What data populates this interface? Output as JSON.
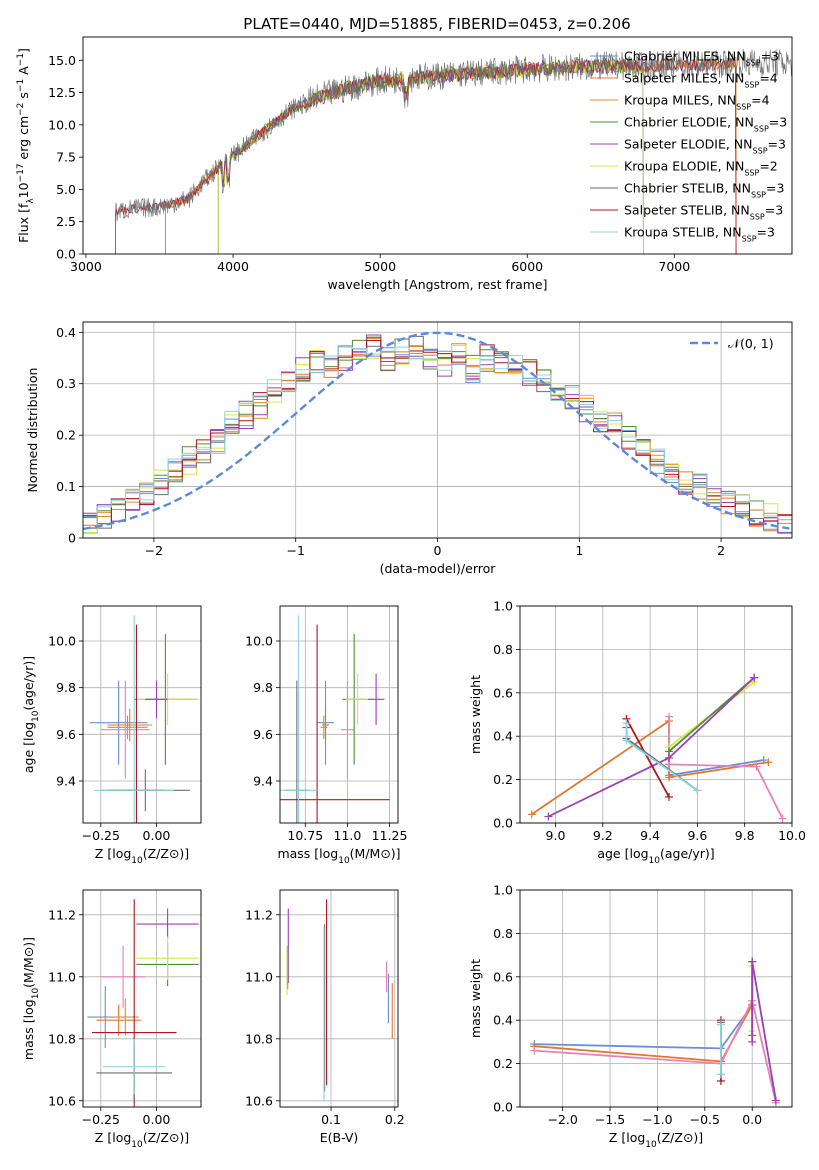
{
  "figure": {
    "title": "PLATE=0440, MJD=51885, FIBERID=0453, z=0.206"
  },
  "colors": {
    "chabrier_miles": "#6a8fd8",
    "salpeter_miles": "#e2772e",
    "kroupa_miles": "#e08a2a",
    "chabrier_elodie": "#4f8f3a",
    "salpeter_elodie": "#9c3fb5",
    "kroupa_elodie": "#d4e84a",
    "chabrier_stelib": "#6e6e6e",
    "salpeter_stelib": "#b0171f",
    "kroupa_stelib": "#8fd3e0",
    "gaussian": "#5b8bd6",
    "pink": "#e882b6",
    "grid": "#b0b0b0"
  },
  "chart_data": [
    {
      "id": "spectrum",
      "type": "line",
      "title": "PLATE=0440, MJD=51885, FIBERID=0453, z=0.206",
      "xlabel": "wavelength [Angstrom, rest frame]",
      "ylabel": "Flux [f_λ10^-17 erg cm^-2 s^-1 A^-1]",
      "xlim": [
        2980,
        7800
      ],
      "ylim": [
        0,
        16.8
      ],
      "xticks": [
        3000,
        4000,
        5000,
        6000,
        7000
      ],
      "yticks": [
        0.0,
        2.5,
        5.0,
        7.5,
        10.0,
        12.5,
        15.0
      ],
      "grid": false,
      "legend_position": "right",
      "continuum_x": [
        3200,
        3300,
        3450,
        3550,
        3700,
        3800,
        3950,
        4100,
        4250,
        4400,
        4600,
        4800,
        5000,
        5200,
        5400,
        5600,
        5800,
        6000,
        6200,
        6400,
        6600,
        6800,
        7000,
        7200,
        7400
      ],
      "continuum_y": [
        3.2,
        3.5,
        3.6,
        3.8,
        4.3,
        5.6,
        7.2,
        8.5,
        9.9,
        11.2,
        12.2,
        12.9,
        13.4,
        13.6,
        13.8,
        14.0,
        14.1,
        14.3,
        14.4,
        14.5,
        14.6,
        14.5,
        14.7,
        14.6,
        14.8
      ],
      "series": [
        {
          "name": "Chabrier MILES, N_SSP=3",
          "color_key": "chabrier_miles",
          "x_range": [
            3540,
            7420
          ]
        },
        {
          "name": "Salpeter MILES, N_SSP=4",
          "color_key": "salpeter_miles",
          "x_range": [
            3540,
            7420
          ]
        },
        {
          "name": "Kroupa MILES, N_SSP=4",
          "color_key": "kroupa_miles",
          "x_range": [
            3540,
            7420
          ]
        },
        {
          "name": "Chabrier ELODIE, N_SSP=3",
          "color_key": "chabrier_elodie",
          "x_range": [
            3900,
            6790
          ]
        },
        {
          "name": "Salpeter ELODIE, N_SSP=3",
          "color_key": "salpeter_elodie",
          "x_range": [
            3900,
            6790
          ]
        },
        {
          "name": "Kroupa ELODIE, N_SSP=2",
          "color_key": "kroupa_elodie",
          "x_range": [
            3900,
            6790
          ]
        },
        {
          "name": "Chabrier STELIB, N_SSP=3",
          "color_key": "chabrier_stelib",
          "x_range": [
            3200,
            7800
          ]
        },
        {
          "name": "Salpeter STELIB, N_SSP=3",
          "color_key": "salpeter_stelib",
          "x_range": [
            3200,
            7420
          ]
        },
        {
          "name": "Kroupa STELIB, N_SSP=3",
          "color_key": "kroupa_stelib",
          "x_range": [
            3200,
            7420
          ]
        }
      ]
    },
    {
      "id": "residuals",
      "type": "line",
      "xlabel": "(data-model)/error",
      "ylabel": "Normed distribution",
      "xlim": [
        -2.5,
        2.5
      ],
      "ylim": [
        0,
        0.42
      ],
      "xticks": [
        -2,
        -1,
        0,
        1,
        2
      ],
      "yticks": [
        0.0,
        0.1,
        0.2,
        0.3,
        0.4
      ],
      "grid": true,
      "legend": [
        "𝒩(0, 1)"
      ],
      "legend_position": "top-right",
      "histogram_base_x": [
        -2.45,
        -2.35,
        -2.25,
        -2.15,
        -2.05,
        -1.95,
        -1.85,
        -1.75,
        -1.65,
        -1.55,
        -1.45,
        -1.35,
        -1.25,
        -1.15,
        -1.05,
        -0.95,
        -0.85,
        -0.75,
        -0.65,
        -0.55,
        -0.45,
        -0.35,
        -0.25,
        -0.15,
        -0.05,
        0.05,
        0.15,
        0.25,
        0.35,
        0.45,
        0.55,
        0.65,
        0.75,
        0.85,
        0.95,
        1.05,
        1.15,
        1.25,
        1.35,
        1.45,
        1.55,
        1.65,
        1.75,
        1.85,
        1.95,
        2.05,
        2.15,
        2.25,
        2.35,
        2.45
      ],
      "histogram_base_y": [
        0.03,
        0.04,
        0.06,
        0.08,
        0.09,
        0.11,
        0.13,
        0.15,
        0.17,
        0.19,
        0.22,
        0.24,
        0.26,
        0.29,
        0.31,
        0.33,
        0.34,
        0.33,
        0.35,
        0.36,
        0.37,
        0.35,
        0.36,
        0.37,
        0.35,
        0.34,
        0.36,
        0.33,
        0.35,
        0.34,
        0.33,
        0.32,
        0.3,
        0.29,
        0.27,
        0.25,
        0.23,
        0.22,
        0.19,
        0.17,
        0.15,
        0.13,
        0.11,
        0.1,
        0.08,
        0.07,
        0.06,
        0.05,
        0.04,
        0.03
      ],
      "gaussian_color_key": "gaussian"
    },
    {
      "id": "age_vs_Z",
      "type": "scatter",
      "xlabel": "Z [log10(Z/Z⊙)]",
      "ylabel": "age  [log10(age/yr)]",
      "xlim": [
        -0.33,
        0.2
      ],
      "ylim": [
        9.22,
        10.15
      ],
      "xticks": [
        -0.25,
        0.0
      ],
      "yticks": [
        9.4,
        9.6,
        9.8,
        10.0
      ],
      "grid": true,
      "points": [
        {
          "color_key": "chabrier_miles",
          "x": -0.17,
          "y": 9.65,
          "xerr": 0.13,
          "yerr": 0.18
        },
        {
          "color_key": "salpeter_miles",
          "x": -0.12,
          "y": 9.64,
          "xerr": 0.1,
          "yerr": 0.07
        },
        {
          "color_key": "kroupa_miles",
          "x": -0.13,
          "y": 9.63,
          "xerr": 0.09,
          "yerr": 0.05
        },
        {
          "color_key": "pink",
          "x": -0.14,
          "y": 9.62,
          "xerr": 0.11,
          "yerr": 0.21
        },
        {
          "color_key": "chabrier_elodie",
          "x": 0.04,
          "y": 9.75,
          "xerr": 0.14,
          "yerr": 0.28
        },
        {
          "color_key": "kroupa_elodie",
          "x": 0.05,
          "y": 9.75,
          "xerr": 0.14,
          "yerr": 0.11
        },
        {
          "color_key": "chabrier_stelib",
          "x": -0.05,
          "y": 9.36,
          "xerr": 0.2,
          "yerr": 0.09
        },
        {
          "color_key": "salpeter_stelib",
          "x": -0.09,
          "y": 9.36,
          "xerr": 0.12,
          "yerr": 0.71
        },
        {
          "color_key": "kroupa_stelib",
          "x": -0.1,
          "y": 9.36,
          "xerr": 0.18,
          "yerr": 0.75
        },
        {
          "color_key": "salpeter_elodie",
          "x": 0.0,
          "y": 9.75,
          "xerr": 0.05,
          "yerr": 0.08
        }
      ]
    },
    {
      "id": "age_vs_mass",
      "type": "scatter",
      "xlabel": "mass [log10(M/M⊙)]",
      "ylabel": "",
      "xlim": [
        10.6,
        11.3
      ],
      "ylim": [
        9.22,
        10.15
      ],
      "xticks": [
        10.75,
        11.0,
        11.25
      ],
      "yticks": [
        9.4,
        9.6,
        9.8,
        10.0
      ],
      "grid": true,
      "points": [
        {
          "color_key": "chabrier_miles",
          "x": 10.87,
          "y": 9.65,
          "xerr": 0.05,
          "yerr": 0.18
        },
        {
          "color_key": "salpeter_miles",
          "x": 10.87,
          "y": 9.64,
          "xerr": 0.02,
          "yerr": 0.07
        },
        {
          "color_key": "kroupa_miles",
          "x": 10.86,
          "y": 9.63,
          "xerr": 0.02,
          "yerr": 0.05
        },
        {
          "color_key": "pink",
          "x": 11.0,
          "y": 9.62,
          "xerr": 0.04,
          "yerr": 0.21
        },
        {
          "color_key": "chabrier_elodie",
          "x": 11.04,
          "y": 9.75,
          "xerr": 0.07,
          "yerr": 0.28
        },
        {
          "color_key": "kroupa_elodie",
          "x": 11.06,
          "y": 9.75,
          "xerr": 0.07,
          "yerr": 0.11
        },
        {
          "color_key": "salpeter_elodie",
          "x": 11.17,
          "y": 9.75,
          "xerr": 0.05,
          "yerr": 0.11
        },
        {
          "color_key": "chabrier_stelib",
          "x": 10.7,
          "y": 9.36,
          "xerr": 0.07,
          "yerr": 0.47
        },
        {
          "color_key": "salpeter_stelib",
          "x": 10.82,
          "y": 9.32,
          "xerr": 0.43,
          "yerr": 0.75
        },
        {
          "color_key": "kroupa_stelib",
          "x": 10.71,
          "y": 9.36,
          "xerr": 0.11,
          "yerr": 0.75
        }
      ]
    },
    {
      "id": "weight_vs_age",
      "type": "line",
      "xlabel": "age  [log10(age/yr)]",
      "ylabel": "mass weight",
      "xlim": [
        8.85,
        10.0
      ],
      "ylim": [
        0.0,
        1.0
      ],
      "xticks": [
        9.0,
        9.2,
        9.4,
        9.6,
        9.8,
        10.0
      ],
      "yticks": [
        0.0,
        0.2,
        0.4,
        0.6,
        0.8,
        1.0
      ],
      "grid": true,
      "series": [
        {
          "color_key": "chabrier_miles",
          "x": [
            9.48,
            9.48,
            9.88
          ],
          "y": [
            0.27,
            0.22,
            0.29
          ]
        },
        {
          "color_key": "salpeter_miles",
          "x": [
            8.9,
            9.48,
            9.48,
            9.9
          ],
          "y": [
            0.04,
            0.47,
            0.21,
            0.28
          ]
        },
        {
          "color_key": "pink",
          "x": [
            9.48,
            9.48,
            9.85,
            9.96
          ],
          "y": [
            0.49,
            0.27,
            0.26,
            0.02
          ]
        },
        {
          "color_key": "kroupa_elodie",
          "x": [
            9.48,
            9.84
          ],
          "y": [
            0.35,
            0.65
          ]
        },
        {
          "color_key": "chabrier_elodie",
          "x": [
            9.48,
            9.84
          ],
          "y": [
            0.33,
            0.67
          ]
        },
        {
          "color_key": "salpeter_elodie",
          "x": [
            8.97,
            9.48,
            9.84
          ],
          "y": [
            0.03,
            0.3,
            0.67
          ]
        },
        {
          "color_key": "salpeter_stelib",
          "x": [
            9.3,
            9.48
          ],
          "y": [
            0.48,
            0.12
          ]
        },
        {
          "color_key": "chabrier_stelib",
          "x": [
            9.3,
            9.3,
            9.6
          ],
          "y": [
            0.44,
            0.39,
            0.15
          ]
        },
        {
          "color_key": "kroupa_stelib",
          "x": [
            9.3,
            9.3,
            9.6
          ],
          "y": [
            0.46,
            0.38,
            0.15
          ]
        }
      ]
    },
    {
      "id": "mass_vs_Z",
      "type": "scatter",
      "xlabel": "Z [log10(Z/Z⊙)]",
      "ylabel": "mass [log10(M/M⊙)]",
      "xlim": [
        -0.33,
        0.2
      ],
      "ylim": [
        10.58,
        11.28
      ],
      "xticks": [
        -0.25,
        0.0
      ],
      "yticks": [
        10.6,
        10.8,
        11.0,
        11.2
      ],
      "grid": true,
      "points": [
        {
          "color_key": "chabrier_miles",
          "x": -0.23,
          "y": 10.87,
          "xerr": 0.08,
          "yerr": 0.1
        },
        {
          "color_key": "salpeter_miles",
          "x": -0.17,
          "y": 10.86,
          "xerr": 0.1,
          "yerr": 0.05
        },
        {
          "color_key": "kroupa_miles",
          "x": -0.14,
          "y": 10.87,
          "xerr": 0.06,
          "yerr": 0.06
        },
        {
          "color_key": "pink",
          "x": -0.15,
          "y": 11.0,
          "xerr": 0.1,
          "yerr": 0.1
        },
        {
          "color_key": "salpeter_stelib",
          "x": -0.1,
          "y": 10.82,
          "xerr": 0.19,
          "yerr": 0.43
        },
        {
          "color_key": "chabrier_stelib",
          "x": -0.1,
          "y": 10.69,
          "xerr": 0.17,
          "yerr": 0.09
        },
        {
          "color_key": "kroupa_stelib",
          "x": -0.1,
          "y": 10.71,
          "xerr": 0.14,
          "yerr": 0.09
        },
        {
          "color_key": "salpeter_elodie",
          "x": 0.05,
          "y": 11.17,
          "xerr": 0.14,
          "yerr": 0.05
        },
        {
          "color_key": "chabrier_elodie",
          "x": 0.05,
          "y": 11.04,
          "xerr": 0.14,
          "yerr": 0.07
        },
        {
          "color_key": "kroupa_elodie",
          "x": 0.05,
          "y": 11.06,
          "xerr": 0.14,
          "yerr": 0.07
        }
      ]
    },
    {
      "id": "mass_vs_ebv",
      "type": "scatter",
      "xlabel": "E(B-V)",
      "ylabel": "",
      "xlim": [
        0.02,
        0.205
      ],
      "ylim": [
        10.58,
        11.28
      ],
      "xticks": [
        0.1,
        0.2
      ],
      "yticks": [
        10.6,
        10.8,
        11.0,
        11.2
      ],
      "grid": true,
      "points": [
        {
          "color_key": "salpeter_elodie",
          "x": 0.033,
          "y": 11.1,
          "yerr": 0.12
        },
        {
          "color_key": "chabrier_elodie",
          "x": 0.032,
          "y": 11.03,
          "yerr": 0.07
        },
        {
          "color_key": "kroupa_elodie",
          "x": 0.031,
          "y": 11.02,
          "yerr": 0.08
        },
        {
          "color_key": "salpeter_stelib",
          "x": 0.093,
          "y": 10.95,
          "yerr": 0.3
        },
        {
          "color_key": "chabrier_stelib",
          "x": 0.09,
          "y": 10.9,
          "yerr": 0.27
        },
        {
          "color_key": "kroupa_stelib",
          "x": 0.089,
          "y": 10.88,
          "yerr": 0.28
        },
        {
          "color_key": "pink",
          "x": 0.187,
          "y": 11.0,
          "yerr": 0.05
        },
        {
          "color_key": "chabrier_miles",
          "x": 0.19,
          "y": 10.93,
          "yerr": 0.08
        },
        {
          "color_key": "salpeter_miles",
          "x": 0.196,
          "y": 10.89,
          "yerr": 0.09
        }
      ]
    },
    {
      "id": "weight_vs_Z",
      "type": "line",
      "xlabel": "Z [log10(Z/Z⊙)]",
      "ylabel": "mass weight",
      "xlim": [
        -2.45,
        0.42
      ],
      "ylim": [
        0.0,
        1.0
      ],
      "xticks": [
        -2.0,
        -1.5,
        -1.0,
        -0.5,
        0.0
      ],
      "yticks": [
        0.0,
        0.2,
        0.4,
        0.6,
        0.8,
        1.0
      ],
      "grid": true,
      "series": [
        {
          "color_key": "chabrier_miles",
          "x": [
            -2.3,
            -0.33,
            0.0
          ],
          "y": [
            0.29,
            0.27,
            0.47
          ]
        },
        {
          "color_key": "salpeter_miles",
          "x": [
            -2.3,
            -0.33,
            0.0,
            0.0
          ],
          "y": [
            0.28,
            0.21,
            0.47,
            0.47
          ]
        },
        {
          "color_key": "pink",
          "x": [
            -2.3,
            -0.33,
            0.0,
            0.25
          ],
          "y": [
            0.26,
            0.2,
            0.49,
            0.02
          ]
        },
        {
          "color_key": "kroupa_elodie",
          "x": [
            0.0,
            0.0
          ],
          "y": [
            0.35,
            0.65
          ]
        },
        {
          "color_key": "chabrier_elodie",
          "x": [
            0.0,
            0.0
          ],
          "y": [
            0.33,
            0.67
          ]
        },
        {
          "color_key": "salpeter_elodie",
          "x": [
            0.0,
            0.0,
            0.25
          ],
          "y": [
            0.3,
            0.67,
            0.03
          ]
        },
        {
          "color_key": "salpeter_stelib",
          "x": [
            -0.33,
            -0.33
          ],
          "y": [
            0.12,
            0.4
          ]
        },
        {
          "color_key": "chabrier_stelib",
          "x": [
            -0.33,
            -0.33
          ],
          "y": [
            0.15,
            0.39
          ]
        },
        {
          "color_key": "kroupa_stelib",
          "x": [
            -0.33,
            -0.33
          ],
          "y": [
            0.15,
            0.38
          ]
        }
      ]
    }
  ]
}
